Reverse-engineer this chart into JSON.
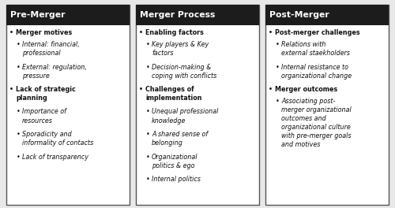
{
  "columns": [
    {
      "header": "Pre-Merger",
      "content": [
        {
          "level": 1,
          "text": "Merger motives"
        },
        {
          "level": 2,
          "text": "Internal: financial,\nprofessional"
        },
        {
          "level": 2,
          "text": "External: regulation,\npressure"
        },
        {
          "level": 1,
          "text": "Lack of strategic\nplanning"
        },
        {
          "level": 2,
          "text": "Importance of\nresources"
        },
        {
          "level": 2,
          "text": "Sporadicity and\ninformality of contacts"
        },
        {
          "level": 2,
          "text": "Lack of transparency"
        }
      ]
    },
    {
      "header": "Merger Process",
      "content": [
        {
          "level": 1,
          "text": "Enabling factors"
        },
        {
          "level": 2,
          "text": "Key players & Key\nfactors"
        },
        {
          "level": 2,
          "text": "Decision-making &\ncoping with conflicts"
        },
        {
          "level": 1,
          "text": "Challenges of\nimplementation"
        },
        {
          "level": 2,
          "text": "Unequal professional\nknowledge"
        },
        {
          "level": 2,
          "text": "A shared sense of\nbelonging"
        },
        {
          "level": 2,
          "text": "Organizational\npolitics & ego"
        },
        {
          "level": 2,
          "text": "Internal politics"
        }
      ]
    },
    {
      "header": "Post-Merger",
      "content": [
        {
          "level": 1,
          "text": "Post-merger challenges"
        },
        {
          "level": 2,
          "text": "Relations with\nexternal staekholders"
        },
        {
          "level": 2,
          "text": "Internal resistance to\norganizational change"
        },
        {
          "level": 1,
          "text": "Merger outcomes"
        },
        {
          "level": 2,
          "text": "Associating post-\nmerger organizational\noutcomes and\norganizational culture\nwith pre-merger goals\nand motives"
        }
      ]
    }
  ],
  "header_bg": "#1c1c1c",
  "header_text_color": "#ffffff",
  "box_bg": "#ffffff",
  "box_border": "#555555",
  "text_color": "#111111",
  "fig_bg": "#e8e8e8",
  "fig_width": 5.0,
  "fig_height": 2.64,
  "header_fontsize": 7.8,
  "body_fontsize": 5.8
}
